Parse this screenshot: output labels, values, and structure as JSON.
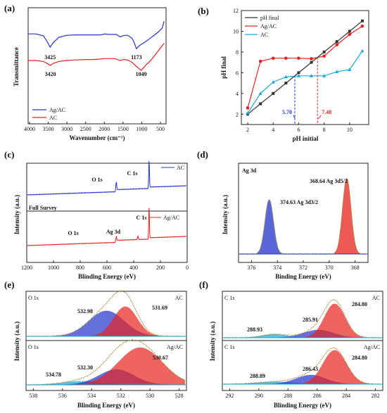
{
  "panels": {
    "a": {
      "label": "(a)",
      "xlabel": "Wavenumber (cm⁻¹)",
      "ylabel": "Transmittance",
      "xticks": [
        "4000",
        "3500",
        "3000",
        "2500",
        "2000",
        "1500",
        "1000",
        "500"
      ],
      "legend": [
        "Ag/AC",
        "AC"
      ],
      "annotations": [
        "3425",
        "1173",
        "3420",
        "1049"
      ]
    },
    "b": {
      "label": "(b)",
      "xlabel": "pH initial",
      "ylabel": "pH final",
      "xticks": [
        "2",
        "4",
        "6",
        "8",
        "10"
      ],
      "yticks": [
        "2",
        "4",
        "6",
        "8",
        "10",
        "12"
      ],
      "legend": [
        "pH final",
        "Ag/AC",
        "AC"
      ],
      "annotations": [
        "5.70",
        "7.48"
      ]
    },
    "c": {
      "label": "(c)",
      "xlabel": "Blinding Energy (eV)",
      "ylabel": "Intensity (a.u.)",
      "xticks": [
        "1200",
        "1000",
        "800",
        "600",
        "400",
        "200",
        "0"
      ],
      "legend": [
        "AC",
        "Ag/AC"
      ],
      "annotations": [
        "O 1s",
        "C 1s",
        "Full Survey",
        "C 1s",
        "O 1s",
        "Ag 3d"
      ]
    },
    "d": {
      "label": "(d)",
      "title": "Ag 3d",
      "xlabel": "Binding Energy (eV)",
      "ylabel": "Intensity (a.u.)",
      "xticks": [
        "376",
        "374",
        "372",
        "370",
        "368"
      ],
      "annotations": [
        "374.63 Ag 3d3/2",
        "368.64 Ag 3d5/2"
      ]
    },
    "e": {
      "label": "(e)",
      "xlabel": "Blinding Energy (eV)",
      "ylabel": "Intensity (a.u.)",
      "xticks": [
        "538",
        "536",
        "534",
        "532",
        "530",
        "528"
      ],
      "sub_labels": [
        "O 1s",
        "AC",
        "O 1s",
        "Ag/AC"
      ],
      "annotations": [
        "532.98",
        "531.69",
        "532.30",
        "530.67",
        "534.78"
      ]
    },
    "f": {
      "label": "(f)",
      "xlabel": "Blinding Energy (eV)",
      "ylabel": "Intensity (a.u.)",
      "xticks": [
        "292",
        "290",
        "288",
        "286",
        "284",
        "282"
      ],
      "sub_labels": [
        "C 1s",
        "AC",
        "C 1s",
        "Ag/AC"
      ],
      "annotations": [
        "284.80",
        "288.93",
        "285.91",
        "284.80",
        "288.89",
        "286.43"
      ]
    }
  },
  "colors": {
    "blue": "#2233cc",
    "red": "#e8231e",
    "cyan": "#18a8d8",
    "black": "#333333",
    "grey": "#555555",
    "green": "#2a9d4a",
    "olive": "#a08a3c"
  },
  "chart_data": [
    {
      "type": "line",
      "panel": "a",
      "xlabel": "Wavenumber (cm⁻¹)",
      "ylabel": "Transmittance",
      "xlim": [
        4000,
        400
      ],
      "series": [
        {
          "name": "Ag/AC",
          "x": [
            4000,
            3800,
            3600,
            3500,
            3425,
            3350,
            3200,
            3000,
            2800,
            2500,
            2300,
            2100,
            2000,
            1900,
            1800,
            1700,
            1600,
            1500,
            1400,
            1300,
            1250,
            1173,
            1100,
            1000,
            900,
            800,
            700,
            600,
            500,
            450
          ],
          "y": [
            0.74,
            0.74,
            0.7,
            0.58,
            0.47,
            0.56,
            0.67,
            0.71,
            0.72,
            0.72,
            0.72,
            0.72,
            0.74,
            0.73,
            0.73,
            0.73,
            0.68,
            0.71,
            0.71,
            0.66,
            0.6,
            0.44,
            0.5,
            0.55,
            0.6,
            0.66,
            0.72,
            0.78,
            0.86,
            1.0
          ]
        },
        {
          "name": "AC",
          "x": [
            4000,
            3800,
            3600,
            3500,
            3420,
            3350,
            3200,
            3000,
            2800,
            2500,
            2300,
            2100,
            2000,
            1900,
            1800,
            1700,
            1600,
            1500,
            1400,
            1300,
            1200,
            1100,
            1049,
            1000,
            900,
            800,
            700,
            600,
            500,
            450
          ],
          "y": [
            0.2,
            0.2,
            0.18,
            0.14,
            0.1,
            0.14,
            0.18,
            0.2,
            0.21,
            0.22,
            0.22,
            0.23,
            0.24,
            0.24,
            0.24,
            0.23,
            0.2,
            0.22,
            0.21,
            0.17,
            0.1,
            0.03,
            0.0,
            0.04,
            0.13,
            0.2,
            0.3,
            0.4,
            0.5,
            0.55
          ]
        }
      ],
      "annotations": [
        {
          "text": "3425",
          "x": 3425
        },
        {
          "text": "1173",
          "x": 1173
        },
        {
          "text": "3420",
          "x": 3420
        },
        {
          "text": "1049",
          "x": 1049
        }
      ]
    },
    {
      "type": "line",
      "panel": "b",
      "xlabel": "pH initial",
      "ylabel": "pH final",
      "xlim": [
        1.5,
        11.5
      ],
      "ylim": [
        1,
        12
      ],
      "series": [
        {
          "name": "pH final",
          "x": [
            2,
            3,
            4,
            5,
            6,
            7,
            8,
            9,
            10,
            11
          ],
          "y": [
            2,
            3,
            4,
            5,
            6,
            7,
            8,
            9,
            10,
            11
          ]
        },
        {
          "name": "Ag/AC",
          "x": [
            2,
            3,
            4,
            5,
            6,
            7,
            8,
            9,
            10,
            11
          ],
          "y": [
            2.6,
            7.1,
            7.4,
            7.4,
            7.4,
            7.35,
            7.6,
            8.7,
            9.7,
            10.5
          ]
        },
        {
          "name": "AC",
          "x": [
            2,
            3,
            4,
            5,
            6,
            7,
            8,
            9,
            10,
            11
          ],
          "y": [
            2.1,
            4.0,
            5.1,
            5.6,
            5.7,
            5.7,
            5.7,
            6.1,
            6.3,
            8.1
          ]
        }
      ],
      "annotations": [
        {
          "text": "5.70",
          "x": 5.7
        },
        {
          "text": "7.48",
          "x": 7.48
        }
      ]
    },
    {
      "type": "line",
      "panel": "c",
      "xlabel": "Blinding Energy (eV)",
      "ylabel": "Intensity (a.u.)",
      "xlim": [
        1200,
        0
      ],
      "series": [
        {
          "name": "AC"
        },
        {
          "name": "Ag/AC"
        }
      ],
      "peaks": [
        {
          "label": "O 1s",
          "x": 531
        },
        {
          "label": "C 1s",
          "x": 284.8
        },
        {
          "label": "Ag 3d",
          "x": 368
        }
      ]
    },
    {
      "type": "line",
      "panel": "d",
      "title": "Ag 3d",
      "xlabel": "Binding Energy (eV)",
      "ylabel": "Intensity (a.u.)",
      "xlim": [
        377,
        367
      ],
      "peaks": [
        {
          "label": "374.63 Ag 3d3/2",
          "x": 374.63,
          "height": 0.72
        },
        {
          "label": "368.64 Ag 3d5/2",
          "x": 368.64,
          "height": 1.0
        }
      ]
    },
    {
      "type": "line",
      "panel": "e",
      "xlabel": "Blinding Energy (eV)",
      "ylabel": "Intensity (a.u.)",
      "xlim": [
        538.5,
        527.5
      ],
      "subplots": [
        {
          "name": "AC",
          "peaks": [
            {
              "x": 532.98,
              "height": 0.6,
              "width": 1.2
            },
            {
              "x": 531.69,
              "height": 0.7,
              "width": 0.8
            }
          ]
        },
        {
          "name": "Ag/AC",
          "peaks": [
            {
              "x": 534.78,
              "height": 0.08,
              "width": 1.2
            },
            {
              "x": 532.3,
              "height": 0.35,
              "width": 1.2
            },
            {
              "x": 530.67,
              "height": 0.85,
              "width": 1.5
            }
          ]
        }
      ]
    },
    {
      "type": "line",
      "panel": "f",
      "xlabel": "Blinding Energy (eV)",
      "ylabel": "Intensity (a.u.)",
      "xlim": [
        292.5,
        281.5
      ],
      "subplots": [
        {
          "name": "AC",
          "peaks": [
            {
              "x": 288.93,
              "height": 0.08,
              "width": 0.8
            },
            {
              "x": 285.91,
              "height": 0.18,
              "width": 1.0
            },
            {
              "x": 284.8,
              "height": 0.8,
              "width": 0.7
            }
          ]
        },
        {
          "name": "Ag/AC",
          "peaks": [
            {
              "x": 288.89,
              "height": 0.05,
              "width": 1.2
            },
            {
              "x": 286.43,
              "height": 0.2,
              "width": 1.0
            },
            {
              "x": 284.8,
              "height": 0.75,
              "width": 0.8
            }
          ]
        }
      ]
    }
  ]
}
